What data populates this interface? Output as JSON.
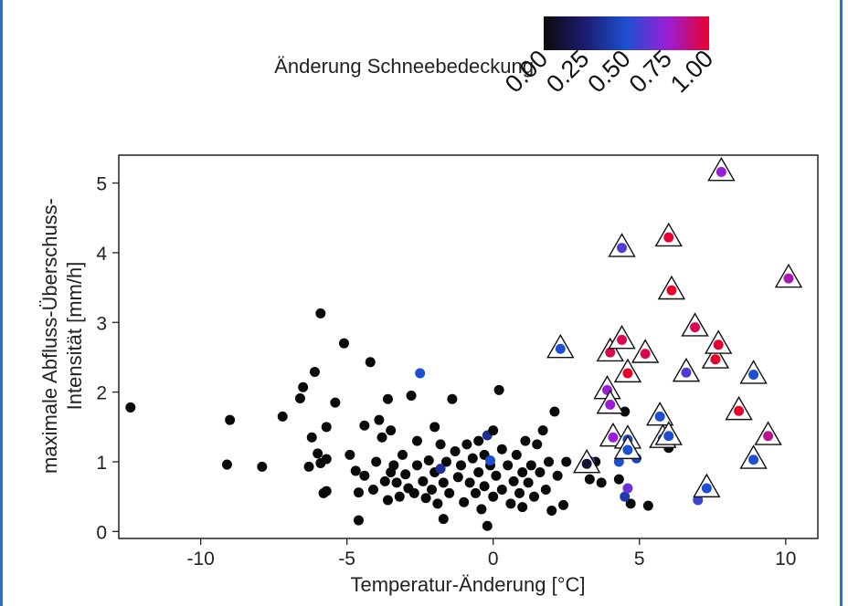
{
  "chart_data": {
    "type": "scatter",
    "title": "",
    "xlabel": "Temperatur-Änderung [°C]",
    "ylabel_lines": [
      "maximale Abfluss-Überschuss-",
      "Intensität [mm/h]"
    ],
    "xlim": [
      -12.8,
      11.1
    ],
    "ylim": [
      -0.1,
      5.4
    ],
    "x_ticks": [
      "-10",
      "-5",
      "0",
      "5",
      "10"
    ],
    "y_ticks": [
      "0",
      "1",
      "2",
      "3",
      "4",
      "5"
    ],
    "grid": false,
    "legend": {
      "title": "Änderung Schneebedeckung",
      "placement": "top-right",
      "ticks": [
        "0.00",
        "0.25",
        "0.50",
        "0.75",
        "1.00"
      ],
      "colors": [
        "#0a0a0a",
        "#1c1c70",
        "#1e4fd0",
        "#9b1ed6",
        "#e8002e"
      ]
    },
    "colorscale": {
      "stops": [
        0,
        0.25,
        0.5,
        0.75,
        1
      ],
      "colors": [
        "#0a0a0a",
        "#1c1c70",
        "#1e4fd0",
        "#9b1ed6",
        "#e8002e"
      ]
    },
    "point_series": [
      {
        "marker": "dot",
        "points": [
          [
            -12.4,
            1.78,
            0
          ],
          [
            -9.0,
            1.6,
            0
          ],
          [
            -9.1,
            0.96,
            0
          ],
          [
            -7.9,
            0.93,
            0
          ],
          [
            -7.2,
            1.65,
            0
          ],
          [
            -6.6,
            1.91,
            0
          ],
          [
            -6.5,
            2.07,
            0
          ],
          [
            -6.3,
            0.93,
            0
          ],
          [
            -6.2,
            1.35,
            0
          ],
          [
            -6.1,
            2.29,
            0
          ],
          [
            -6.0,
            1.12,
            0
          ],
          [
            -5.9,
            3.13,
            0
          ],
          [
            -5.8,
            0.55,
            0
          ],
          [
            -5.9,
            0.98,
            0
          ],
          [
            -5.7,
            1.5,
            0
          ],
          [
            -5.7,
            1.04,
            0
          ],
          [
            -5.7,
            0.58,
            0
          ],
          [
            -5.4,
            1.85,
            0
          ],
          [
            -5.1,
            2.7,
            0
          ],
          [
            -4.9,
            1.1,
            0
          ],
          [
            -4.7,
            0.87,
            0
          ],
          [
            -4.6,
            0.16,
            0
          ],
          [
            -4.6,
            0.56,
            0
          ],
          [
            -4.4,
            0.8,
            0
          ],
          [
            -4.4,
            1.52,
            0
          ],
          [
            -4.2,
            2.43,
            0
          ],
          [
            -4.1,
            0.6,
            0
          ],
          [
            -4.0,
            1.0,
            0
          ],
          [
            -3.9,
            1.6,
            0
          ],
          [
            -3.8,
            1.35,
            0
          ],
          [
            -3.7,
            0.72,
            0
          ],
          [
            -3.6,
            0.45,
            0
          ],
          [
            -3.6,
            1.9,
            0
          ],
          [
            -3.5,
            0.85,
            0
          ],
          [
            -3.5,
            1.45,
            0
          ],
          [
            -3.4,
            0.95,
            0
          ],
          [
            -3.3,
            0.7,
            0
          ],
          [
            -3.2,
            0.5,
            0
          ],
          [
            -3.1,
            1.1,
            0
          ],
          [
            -3.0,
            0.82,
            0
          ],
          [
            -2.9,
            0.62,
            0
          ],
          [
            -2.8,
            1.95,
            0
          ],
          [
            -2.7,
            0.55,
            0
          ],
          [
            -2.6,
            1.3,
            0
          ],
          [
            -2.6,
            0.95,
            0
          ],
          [
            -2.5,
            2.27,
            0.5
          ],
          [
            -2.4,
            0.72,
            0
          ],
          [
            -2.3,
            0.48,
            0
          ],
          [
            -2.2,
            1.02,
            0
          ],
          [
            -2.1,
            0.6,
            0
          ],
          [
            -2.0,
            1.5,
            0
          ],
          [
            -2.0,
            0.85,
            0
          ],
          [
            -1.9,
            0.4,
            0
          ],
          [
            -1.8,
            1.25,
            0
          ],
          [
            -1.7,
            0.18,
            0
          ],
          [
            -1.7,
            0.7,
            0
          ],
          [
            -1.6,
            1.0,
            0
          ],
          [
            -1.5,
            0.55,
            0
          ],
          [
            -1.4,
            1.9,
            0
          ],
          [
            -1.3,
            1.15,
            0
          ],
          [
            -1.2,
            0.78,
            0
          ],
          [
            -1.1,
            0.95,
            0
          ],
          [
            -1.0,
            0.42,
            0
          ],
          [
            -0.9,
            1.25,
            0
          ],
          [
            -0.8,
            0.7,
            0
          ],
          [
            -0.7,
            1.05,
            0
          ],
          [
            -0.6,
            0.55,
            0
          ],
          [
            -0.5,
            1.3,
            0
          ],
          [
            -0.5,
            0.85,
            0
          ],
          [
            -0.4,
            0.32,
            0
          ],
          [
            -0.3,
            1.1,
            0
          ],
          [
            -0.3,
            0.65,
            0
          ],
          [
            -0.2,
            1.38,
            0.35
          ],
          [
            -0.2,
            0.08,
            0
          ],
          [
            -0.1,
            0.95,
            0
          ],
          [
            0.0,
            0.5,
            0
          ],
          [
            0.0,
            1.45,
            0
          ],
          [
            0.1,
            0.8,
            0
          ],
          [
            0.2,
            2.03,
            0
          ],
          [
            0.3,
            1.18,
            0
          ],
          [
            0.3,
            0.6,
            0
          ],
          [
            0.5,
            0.95,
            0
          ],
          [
            0.6,
            0.4,
            0
          ],
          [
            0.7,
            0.72,
            0
          ],
          [
            0.8,
            1.1,
            0
          ],
          [
            0.9,
            0.55,
            0
          ],
          [
            1.0,
            0.85,
            0
          ],
          [
            1.0,
            0.35,
            0
          ],
          [
            1.1,
            1.3,
            0
          ],
          [
            1.2,
            0.7,
            0
          ],
          [
            1.3,
            0.95,
            0
          ],
          [
            1.4,
            0.5,
            0
          ],
          [
            1.5,
            1.25,
            0
          ],
          [
            1.6,
            0.85,
            0
          ],
          [
            1.7,
            1.45,
            0
          ],
          [
            1.8,
            0.6,
            0
          ],
          [
            1.9,
            1.0,
            0
          ],
          [
            2.0,
            0.3,
            0
          ],
          [
            2.1,
            1.72,
            0
          ],
          [
            2.2,
            0.8,
            0
          ],
          [
            2.4,
            0.38,
            0
          ],
          [
            2.5,
            1.0,
            0
          ],
          [
            3.3,
            0.75,
            0
          ],
          [
            3.5,
            1.0,
            0
          ],
          [
            3.7,
            0.7,
            0
          ],
          [
            4.3,
            0.75,
            0
          ],
          [
            4.5,
            1.72,
            0
          ],
          [
            4.7,
            0.4,
            0
          ],
          [
            5.3,
            0.37,
            0
          ],
          [
            6.0,
            1.2,
            0
          ],
          [
            -0.1,
            1.02,
            0.5
          ],
          [
            -1.8,
            0.9,
            0.35
          ],
          [
            3.3,
            1.01,
            0.55
          ],
          [
            4.3,
            1.0,
            0.5
          ],
          [
            4.5,
            0.5,
            0.4
          ],
          [
            4.6,
            0.62,
            0.65
          ],
          [
            4.9,
            1.05,
            0.45
          ],
          [
            7.0,
            0.45,
            0.55
          ]
        ]
      },
      {
        "marker": "triangle",
        "points": [
          [
            2.3,
            2.62,
            0.5
          ],
          [
            3.2,
            0.97,
            0.1
          ],
          [
            4.0,
            2.57,
            0.95
          ],
          [
            4.4,
            4.07,
            0.6
          ],
          [
            4.4,
            2.75,
            0.95
          ],
          [
            4.6,
            2.27,
            1.0
          ],
          [
            3.9,
            2.03,
            0.75
          ],
          [
            4.0,
            1.82,
            0.75
          ],
          [
            4.1,
            1.35,
            0.75
          ],
          [
            4.6,
            1.32,
            0.5
          ],
          [
            4.6,
            1.17,
            0.5
          ],
          [
            5.2,
            2.55,
            0.95
          ],
          [
            5.7,
            1.65,
            0.5
          ],
          [
            5.8,
            1.33,
            0.5
          ],
          [
            6.0,
            1.37,
            0.5
          ],
          [
            6.0,
            4.22,
            1.0
          ],
          [
            6.1,
            3.46,
            1.0
          ],
          [
            6.9,
            2.93,
            0.95
          ],
          [
            6.6,
            2.28,
            0.6
          ],
          [
            7.3,
            0.62,
            0.5
          ],
          [
            7.6,
            2.47,
            1.0
          ],
          [
            7.7,
            2.68,
            1.0
          ],
          [
            7.8,
            5.16,
            0.75
          ],
          [
            8.4,
            1.73,
            1.0
          ],
          [
            8.9,
            2.25,
            0.5
          ],
          [
            8.9,
            1.03,
            0.5
          ],
          [
            9.4,
            1.37,
            0.85
          ],
          [
            10.1,
            3.63,
            0.8
          ]
        ]
      }
    ]
  }
}
